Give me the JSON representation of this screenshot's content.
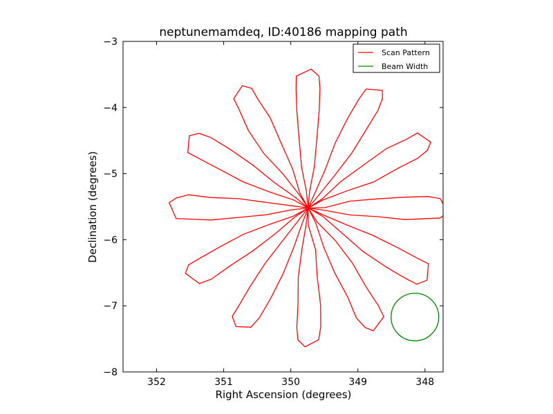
{
  "chart_data": {
    "type": "line",
    "title": "neptunemamdeq, ID:40186 mapping path",
    "xlabel": "Right Ascension (degrees)",
    "ylabel": "Declination (degrees)",
    "xlim": [
      352.5,
      347.73
    ],
    "ylim": [
      -8,
      -3
    ],
    "xticks": [
      352,
      351,
      350,
      349,
      348
    ],
    "xtick_labels": [
      "352",
      "351",
      "350",
      "349",
      "348"
    ],
    "yticks": [
      -3,
      -4,
      -5,
      -6,
      -7,
      -8
    ],
    "ytick_labels": [
      "−3",
      "−4",
      "−5",
      "−6",
      "−7",
      "−8"
    ],
    "grid": false,
    "legend": {
      "placement": "top-right",
      "entries": [
        {
          "label": "Scan Pattern",
          "color": "#ff0000"
        },
        {
          "label": "Beam Width",
          "color": "#008000"
        }
      ]
    },
    "scan_pattern": {
      "center_ra": 349.74,
      "center_dec": -5.52,
      "petal_count": 12,
      "petal_length_deg": 2.1,
      "petal_half_width_deg": 0.18,
      "color": "#ff0000"
    },
    "beam_width": {
      "center_ra": 348.15,
      "center_dec": -7.17,
      "radius_deg": 0.36,
      "color": "#008000"
    }
  }
}
